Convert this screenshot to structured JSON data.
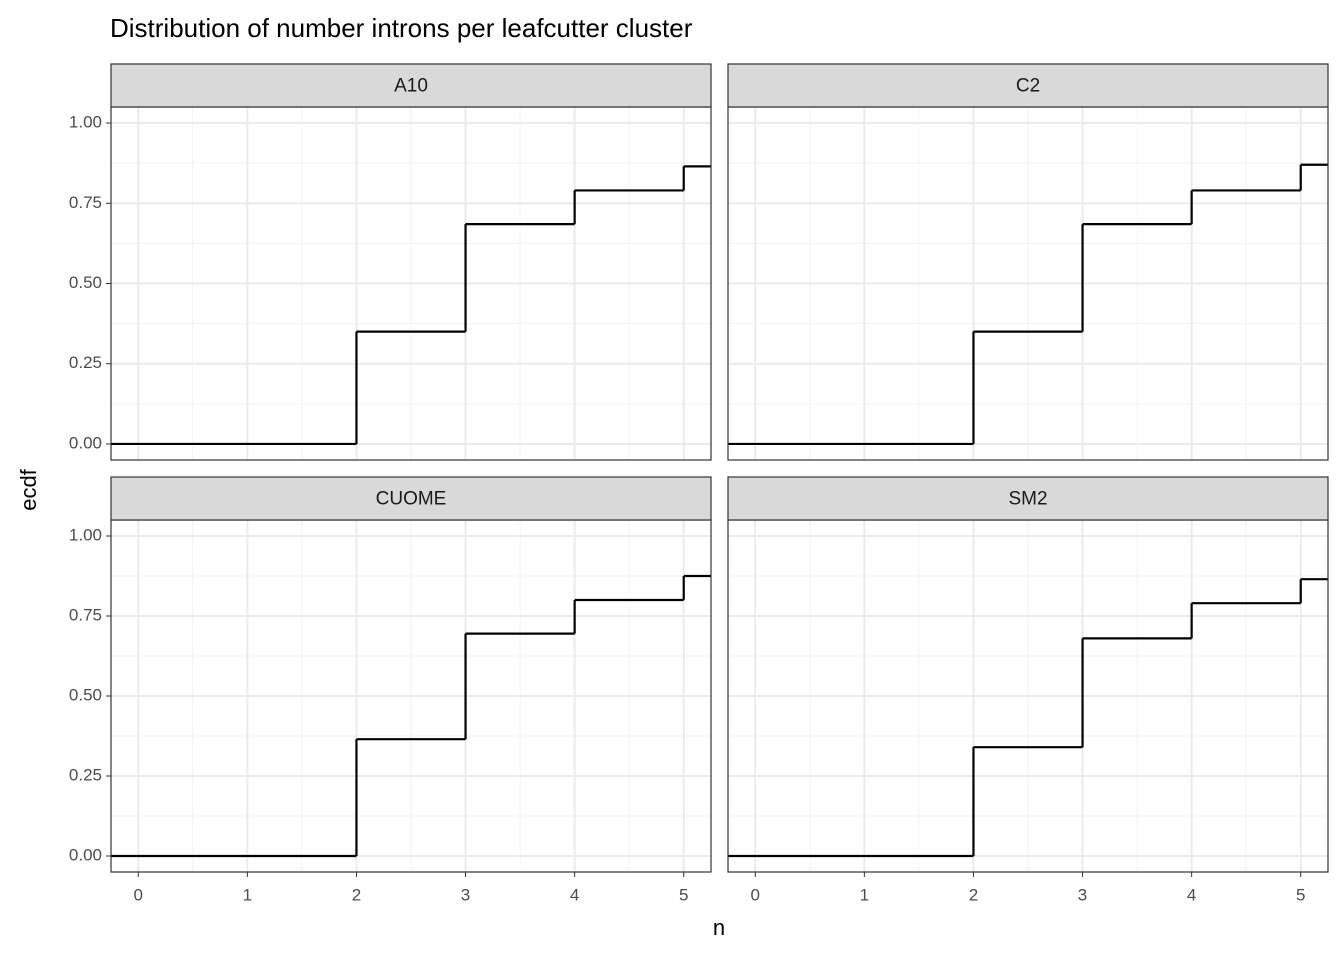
{
  "chart_data": {
    "type": "step",
    "title": "Distribution of number introns per leafcutter cluster",
    "x_label": "n",
    "y_label": "ecdf",
    "color": "#000000",
    "grid": true,
    "minor_grid": true,
    "xlim": [
      -0.25,
      5.25
    ],
    "xticks": [
      0,
      1,
      2,
      3,
      4,
      5
    ],
    "ylim": [
      -0.05,
      1.05
    ],
    "yticks": [
      {
        "value": 0,
        "label": "0.00"
      },
      {
        "value": 0.25,
        "label": "0.25"
      },
      {
        "value": 0.5,
        "label": "0.50"
      },
      {
        "value": 0.75,
        "label": "0.75"
      },
      {
        "value": 1,
        "label": "1.00"
      }
    ],
    "facets": [
      {
        "title": "A10",
        "x": [
          -0.25,
          2,
          3,
          4,
          5
        ],
        "values": [
          0,
          0.35,
          0.685,
          0.79,
          0.865
        ]
      },
      {
        "title": "C2",
        "x": [
          -0.25,
          2,
          3,
          4,
          5
        ],
        "values": [
          0,
          0.35,
          0.685,
          0.79,
          0.87
        ]
      },
      {
        "title": "CUOME",
        "x": [
          -0.25,
          2,
          3,
          4,
          5
        ],
        "values": [
          0,
          0.365,
          0.695,
          0.8,
          0.875
        ]
      },
      {
        "title": "SM2",
        "x": [
          -0.25,
          2,
          3,
          4,
          5
        ],
        "values": [
          0,
          0.34,
          0.68,
          0.79,
          0.865
        ]
      }
    ]
  }
}
